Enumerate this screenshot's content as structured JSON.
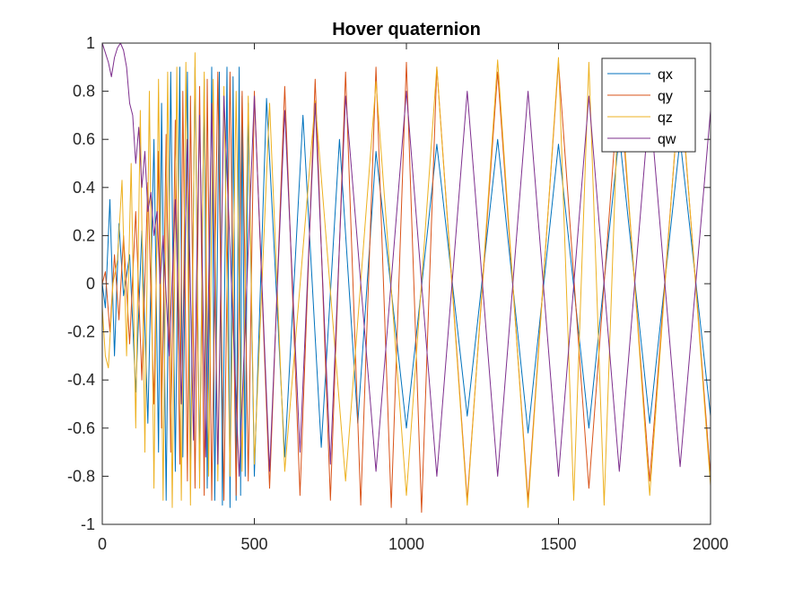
{
  "chart_data": {
    "type": "line",
    "title": "Hover quaternion",
    "xlabel": "",
    "ylabel": "",
    "xlim": [
      0,
      2000
    ],
    "ylim": [
      -1,
      1
    ],
    "xticks": [
      0,
      500,
      1000,
      1500,
      2000
    ],
    "xtick_labels": [
      "0",
      "500",
      "1000",
      "1500",
      "2000"
    ],
    "yticks": [
      -1,
      -0.8,
      -0.6,
      -0.4,
      -0.2,
      0,
      0.2,
      0.4,
      0.6,
      0.8,
      1
    ],
    "ytick_labels": [
      "-1",
      "-0.8",
      "-0.6",
      "-0.4",
      "-0.2",
      "0",
      "0.2",
      "0.4",
      "0.6",
      "0.8",
      "1"
    ],
    "grid": false,
    "legend_position": "top-right",
    "series": [
      {
        "name": "qx",
        "color": "#0072BD",
        "x": [
          0,
          10,
          25,
          40,
          55,
          70,
          90,
          110,
          130,
          150,
          170,
          185,
          195,
          210,
          225,
          240,
          255,
          265,
          280,
          290,
          305,
          320,
          335,
          345,
          360,
          370,
          385,
          395,
          410,
          420,
          430,
          440,
          450,
          455,
          460,
          470,
          480,
          500,
          540,
          600,
          660,
          720,
          780,
          840,
          900,
          1000,
          1100,
          1200,
          1300,
          1400,
          1500,
          1600,
          1700,
          1800,
          1900,
          2000
        ],
        "y": [
          0.0,
          -0.1,
          0.35,
          -0.3,
          0.25,
          -0.05,
          0.12,
          -0.45,
          0.22,
          -0.58,
          0.6,
          -0.7,
          0.75,
          -0.9,
          0.88,
          -0.78,
          0.9,
          -0.72,
          0.88,
          -0.8,
          0.9,
          -0.78,
          0.85,
          -0.85,
          0.9,
          -0.9,
          0.88,
          -0.92,
          0.9,
          -0.93,
          0.86,
          -0.9,
          0.9,
          -0.88,
          0.78,
          -0.8,
          0.75,
          -0.8,
          0.77,
          -0.72,
          0.7,
          -0.68,
          0.6,
          -0.58,
          0.55,
          -0.6,
          0.58,
          -0.55,
          0.6,
          -0.62,
          0.58,
          -0.6,
          0.62,
          -0.58,
          0.6,
          -0.55
        ]
      },
      {
        "name": "qy",
        "color": "#D95319",
        "x": [
          0,
          10,
          25,
          40,
          55,
          70,
          90,
          110,
          130,
          150,
          170,
          185,
          195,
          210,
          225,
          240,
          255,
          265,
          280,
          290,
          305,
          320,
          335,
          345,
          360,
          380,
          400,
          420,
          440,
          460,
          480,
          500,
          550,
          600,
          650,
          700,
          750,
          800,
          850,
          900,
          950,
          1000,
          1050,
          1100,
          1200,
          1300,
          1400,
          1500,
          1600,
          1700,
          1800,
          1900,
          2000
        ],
        "y": [
          0.0,
          0.05,
          -0.2,
          0.12,
          -0.15,
          0.2,
          -0.25,
          0.3,
          -0.4,
          0.42,
          -0.5,
          0.55,
          -0.6,
          0.62,
          -0.7,
          0.68,
          -0.75,
          0.8,
          -0.82,
          0.78,
          -0.85,
          0.82,
          -0.88,
          0.85,
          -0.9,
          0.88,
          -0.9,
          0.88,
          -0.88,
          0.8,
          -0.82,
          0.8,
          -0.85,
          0.82,
          -0.88,
          0.85,
          -0.9,
          0.88,
          -0.92,
          0.9,
          -0.93,
          0.92,
          -0.95,
          0.9,
          -0.9,
          0.88,
          -0.9,
          0.92,
          -0.85,
          0.85,
          -0.82,
          0.84,
          -0.8
        ]
      },
      {
        "name": "qz",
        "color": "#EDB120",
        "x": [
          0,
          10,
          20,
          35,
          50,
          65,
          80,
          95,
          110,
          125,
          140,
          155,
          170,
          185,
          200,
          215,
          230,
          245,
          260,
          275,
          290,
          305,
          320,
          335,
          350,
          365,
          380,
          400,
          420,
          440,
          460,
          480,
          500,
          550,
          600,
          700,
          800,
          900,
          1000,
          1100,
          1200,
          1300,
          1400,
          1500,
          1550,
          1600,
          1650,
          1700,
          1800,
          1900,
          2000
        ],
        "y": [
          -0.1,
          -0.3,
          -0.35,
          0.0,
          0.1,
          0.43,
          -0.3,
          0.5,
          -0.6,
          0.72,
          -0.7,
          0.8,
          -0.85,
          0.85,
          -0.9,
          0.88,
          -0.93,
          0.9,
          -0.9,
          0.92,
          -0.92,
          0.96,
          -0.85,
          0.88,
          -0.8,
          0.85,
          -0.82,
          0.82,
          -0.8,
          0.8,
          -0.78,
          0.78,
          -0.75,
          0.75,
          -0.78,
          0.76,
          -0.82,
          0.84,
          -0.88,
          0.9,
          -0.92,
          0.93,
          -0.93,
          0.94,
          -0.9,
          0.92,
          -0.92,
          0.9,
          -0.88,
          0.86,
          -0.84
        ]
      },
      {
        "name": "qw",
        "color": "#7E2F8E",
        "x": [
          0,
          10,
          20,
          30,
          40,
          50,
          60,
          70,
          80,
          90,
          100,
          110,
          120,
          130,
          140,
          150,
          160,
          170,
          180,
          190,
          200,
          220,
          240,
          260,
          280,
          300,
          320,
          340,
          360,
          380,
          400,
          450,
          500,
          550,
          600,
          650,
          700,
          750,
          800,
          900,
          1000,
          1100,
          1200,
          1300,
          1400,
          1500,
          1600,
          1700,
          1800,
          1900,
          2000
        ],
        "y": [
          1.0,
          0.96,
          0.92,
          0.86,
          0.94,
          0.98,
          1.0,
          0.97,
          0.9,
          0.75,
          0.7,
          0.5,
          0.65,
          0.4,
          0.55,
          0.3,
          0.38,
          0.2,
          0.3,
          0.0,
          0.2,
          -0.3,
          0.35,
          -0.5,
          0.6,
          -0.65,
          0.7,
          -0.72,
          0.75,
          -0.75,
          0.78,
          -0.8,
          0.78,
          -0.78,
          0.72,
          -0.7,
          0.75,
          -0.75,
          0.78,
          -0.78,
          0.8,
          -0.8,
          0.8,
          -0.8,
          0.8,
          -0.8,
          0.78,
          -0.78,
          0.76,
          -0.76,
          0.72
        ]
      }
    ]
  }
}
